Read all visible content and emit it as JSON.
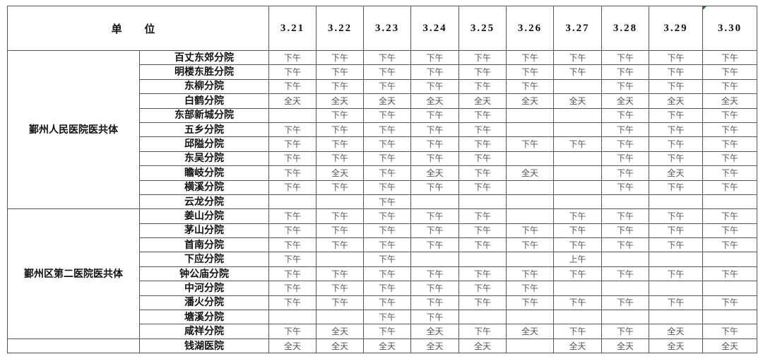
{
  "header": {
    "unit_label": "单 位",
    "dates": [
      "3.21",
      "3.22",
      "3.23",
      "3.24",
      "3.25",
      "3.26",
      "3.27",
      "3.28",
      "3.29",
      "3.30"
    ]
  },
  "groups": [
    {
      "unit": "鄞州人民医院医共体",
      "rows": [
        {
          "name": "百丈东郊分院",
          "values": [
            "下午",
            "下午",
            "下午",
            "下午",
            "下午",
            "下午",
            "下午",
            "下午",
            "下午",
            "下午"
          ]
        },
        {
          "name": "明楼东胜分院",
          "values": [
            "下午",
            "下午",
            "下午",
            "下午",
            "下午",
            "下午",
            "下午",
            "下午",
            "下午",
            "下午"
          ]
        },
        {
          "name": "东柳分院",
          "values": [
            "下午",
            "下午",
            "下午",
            "下午",
            "下午",
            "下午",
            "",
            "下午",
            "下午",
            "下午"
          ]
        },
        {
          "name": "白鹤分院",
          "values": [
            "全天",
            "全天",
            "全天",
            "全天",
            "全天",
            "全天",
            "全天",
            "全天",
            "全天",
            "全天"
          ]
        },
        {
          "name": "东部新城分院",
          "values": [
            "",
            "下午",
            "下午",
            "下午",
            "下午",
            "",
            "",
            "下午",
            "下午",
            "下午"
          ]
        },
        {
          "name": "五乡分院",
          "values": [
            "下午",
            "下午",
            "下午",
            "下午",
            "下午",
            "",
            "",
            "下午",
            "下午",
            "下午"
          ]
        },
        {
          "name": "邱隘分院",
          "values": [
            "下午",
            "下午",
            "下午",
            "下午",
            "下午",
            "下午",
            "下午",
            "下午",
            "下午",
            "下午"
          ]
        },
        {
          "name": "东吴分院",
          "values": [
            "下午",
            "下午",
            "下午",
            "下午",
            "下午",
            "",
            "",
            "下午",
            "下午",
            "下午"
          ]
        },
        {
          "name": "瞻岐分院",
          "values": [
            "下午",
            "全天",
            "下午",
            "全天",
            "下午",
            "全天",
            "",
            "下午",
            "全天",
            "下午"
          ]
        },
        {
          "name": "横溪分院",
          "values": [
            "下午",
            "下午",
            "下午",
            "下午",
            "下午",
            "",
            "",
            "下午",
            "下午",
            "下午"
          ]
        },
        {
          "name": "云龙分院",
          "values": [
            "",
            "",
            "下午",
            "",
            "",
            "",
            "",
            "",
            "",
            ""
          ]
        }
      ]
    },
    {
      "unit": "鄞州区第二医院医共体",
      "rows": [
        {
          "name": "姜山分院",
          "values": [
            "下午",
            "下午",
            "下午",
            "下午",
            "下午",
            "",
            "下午",
            "下午",
            "下午",
            "下午"
          ]
        },
        {
          "name": "茅山分院",
          "values": [
            "下午",
            "下午",
            "下午",
            "下午",
            "下午",
            "下午",
            "下午",
            "下午",
            "下午",
            "下午"
          ]
        },
        {
          "name": "首南分院",
          "values": [
            "下午",
            "下午",
            "下午",
            "下午",
            "下午",
            "下午",
            "下午",
            "下午",
            "下午",
            "下午"
          ]
        },
        {
          "name": "下应分院",
          "values": [
            "下午",
            "",
            "下午",
            "",
            "",
            "",
            "上午",
            "",
            "",
            ""
          ]
        },
        {
          "name": "钟公庙分院",
          "values": [
            "下午",
            "下午",
            "下午",
            "下午",
            "下午",
            "下午",
            "下午",
            "下午",
            "下午",
            "下午"
          ]
        },
        {
          "name": "中河分院",
          "values": [
            "下午",
            "下午",
            "下午",
            "下午",
            "下午",
            "下午",
            "",
            "",
            "",
            ""
          ]
        },
        {
          "name": "潘火分院",
          "values": [
            "下午",
            "下午",
            "下午",
            "下午",
            "下午",
            "下午",
            "下午",
            "下午",
            "下午",
            "下午"
          ]
        },
        {
          "name": "塘溪分院",
          "values": [
            "",
            "",
            "下午",
            "下午",
            "",
            "",
            "",
            "",
            "",
            ""
          ]
        },
        {
          "name": "咸祥分院",
          "values": [
            "下午",
            "全天",
            "下午",
            "全天",
            "下午",
            "全天",
            "下午",
            "下午",
            "全天",
            "下午"
          ]
        }
      ]
    },
    {
      "unit": "",
      "rows": [
        {
          "name": "钱湖医院",
          "values": [
            "全天",
            "全天",
            "全天",
            "全天",
            "全天",
            "",
            "全天",
            "全天",
            "全天",
            "全天"
          ]
        }
      ]
    }
  ],
  "colors": {
    "border": "#555555",
    "corner_marker": "#1a8a1a"
  }
}
